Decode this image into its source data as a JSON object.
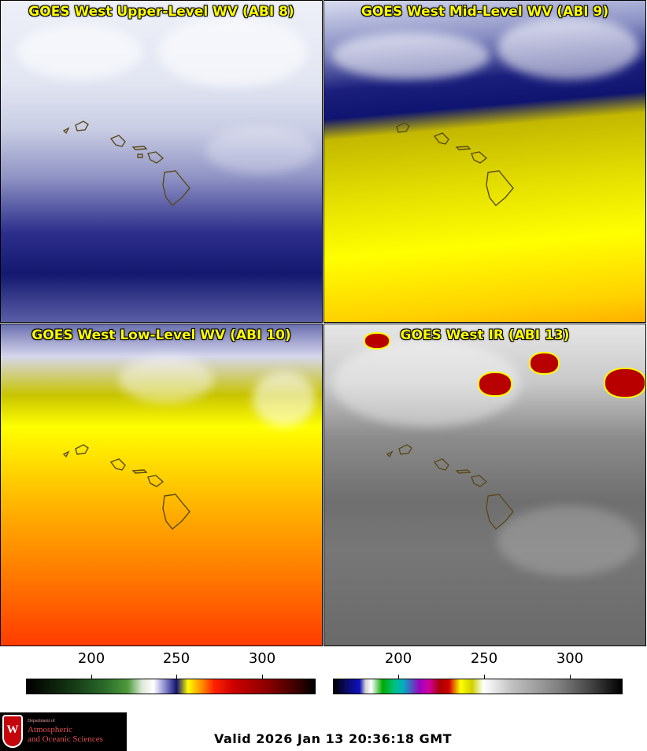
{
  "panels": {
    "upper": {
      "title": "GOES West Upper-Level WV (ABI 8)"
    },
    "mid": {
      "title": "GOES West Mid-Level WV (ABI 9)"
    },
    "low": {
      "title": "GOES West Low-Level WV (ABI 10)"
    },
    "ir": {
      "title": "GOES West IR (ABI 13)"
    }
  },
  "colorbars": {
    "wv": {
      "ticks": [
        "200",
        "250",
        "300"
      ]
    },
    "ir": {
      "ticks": [
        "200",
        "250",
        "300"
      ]
    }
  },
  "logo": {
    "line1": "Department of",
    "line2": "Atmospheric",
    "line3": "and Oceanic Sciences",
    "shield_letter": "W"
  },
  "footer": {
    "valid": "Valid 2026 Jan 13 20:36:18 GMT"
  },
  "colors": {
    "title": "#ffff00",
    "brand": "#c5050c"
  }
}
